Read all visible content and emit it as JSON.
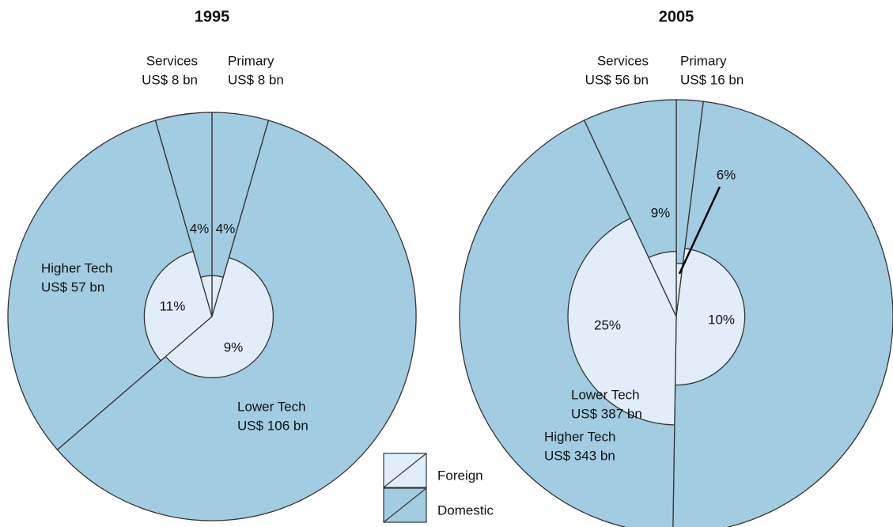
{
  "chart_data": [
    {
      "type": "pie",
      "title": "1995",
      "categories": [
        "Primary",
        "Lower Tech",
        "Higher Tech",
        "Services"
      ],
      "values": [
        8,
        106,
        57,
        8
      ],
      "value_labels": [
        "US$ 8 bn",
        "US$ 106 bn",
        "US$ 57 bn",
        "US$ 8 bn"
      ],
      "foreign_share": [
        4,
        9,
        11,
        4
      ],
      "foreign_share_labels": [
        "4%",
        "9%",
        "11%",
        "4%"
      ]
    },
    {
      "type": "pie",
      "title": "2005",
      "categories": [
        "Primary",
        "Lower Tech",
        "Higher Tech",
        "Services"
      ],
      "values": [
        16,
        387,
        343,
        56
      ],
      "value_labels": [
        "US$ 16 bn",
        "US$ 387 bn",
        "US$ 343 bn",
        "US$ 56 bn"
      ],
      "foreign_share": [
        6,
        10,
        25,
        9
      ],
      "foreign_share_labels": [
        "6%",
        "10%",
        "25%",
        "9%"
      ]
    }
  ],
  "legend": [
    {
      "name": "Foreign",
      "color": "#e1eef9"
    },
    {
      "name": "Domestic",
      "color": "#a2cce2"
    }
  ]
}
